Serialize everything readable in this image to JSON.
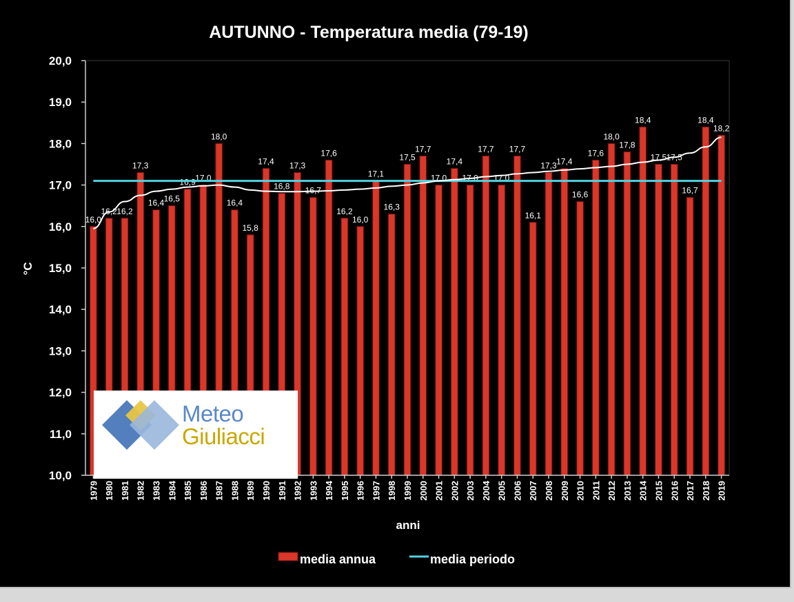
{
  "chart_data": {
    "type": "bar",
    "title": "AUTUNNO - Temperatura media (79-19)",
    "xlabel": "anni",
    "ylabel": "°C",
    "ylim": [
      10,
      20
    ],
    "yticks": [
      "10,0",
      "11,0",
      "12,0",
      "13,0",
      "14,0",
      "15,0",
      "16,0",
      "17,0",
      "18,0",
      "19,0",
      "20,0"
    ],
    "categories": [
      "1979",
      "1980",
      "1981",
      "1982",
      "1983",
      "1984",
      "1985",
      "1986",
      "1987",
      "1988",
      "1989",
      "1990",
      "1991",
      "1992",
      "1993",
      "1994",
      "1995",
      "1996",
      "1997",
      "1998",
      "1999",
      "2000",
      "2001",
      "2002",
      "2003",
      "2004",
      "2005",
      "2006",
      "2007",
      "2008",
      "2009",
      "2010",
      "2011",
      "2012",
      "2013",
      "2014",
      "2015",
      "2016",
      "2017",
      "2018",
      "2019"
    ],
    "series": [
      {
        "name": "media annua",
        "color": "#d9372a",
        "values": [
          16.0,
          16.2,
          16.2,
          17.3,
          16.4,
          16.5,
          16.9,
          17.0,
          18.0,
          16.4,
          15.8,
          17.4,
          16.8,
          17.3,
          16.7,
          17.6,
          16.2,
          16.0,
          17.1,
          16.3,
          17.5,
          17.7,
          17.0,
          17.4,
          17.0,
          17.7,
          17.0,
          17.7,
          16.1,
          17.3,
          17.4,
          16.6,
          17.6,
          18.0,
          17.8,
          18.4,
          17.5,
          17.5,
          16.7,
          18.4,
          18.2
        ],
        "labels": [
          "16,0",
          "16,2",
          "16,2",
          "17,3",
          "16,4",
          "16,5",
          "16,9",
          "17,0",
          "18,0",
          "16,4",
          "15,8",
          "17,4",
          "16,8",
          "17,3",
          "16,7",
          "17,6",
          "16,2",
          "16,0",
          "17,1",
          "16,3",
          "17,5",
          "17,7",
          "17,0",
          "17,4",
          "17,0",
          "17,7",
          "17,0",
          "17,7",
          "16,1",
          "17,3",
          "17,4",
          "16,6",
          "17,6",
          "18,0",
          "17,8",
          "18,4",
          "17,5",
          "17,5",
          "16,7",
          "18,4",
          "18,2"
        ]
      },
      {
        "name": "media periodo",
        "color": "#4fd4e0",
        "value": 17.1
      }
    ],
    "trend": {
      "color": "#ffffff",
      "values": [
        15.95,
        16.35,
        16.6,
        16.75,
        16.85,
        16.9,
        16.95,
        16.98,
        17.0,
        16.95,
        16.88,
        16.85,
        16.84,
        16.84,
        16.85,
        16.86,
        16.88,
        16.9,
        16.93,
        16.97,
        17.0,
        17.05,
        17.1,
        17.13,
        17.16,
        17.2,
        17.23,
        17.27,
        17.3,
        17.33,
        17.36,
        17.39,
        17.42,
        17.45,
        17.5,
        17.55,
        17.6,
        17.67,
        17.77,
        17.92,
        18.15
      ]
    },
    "grid": false,
    "legend_position": "bottom"
  },
  "logo": {
    "line1": "Meteo",
    "line2": "Giuliacci",
    "colors": {
      "gold": "#e8c545",
      "blue": "#4a78bb",
      "lightblue": "#9ab7dc"
    }
  }
}
